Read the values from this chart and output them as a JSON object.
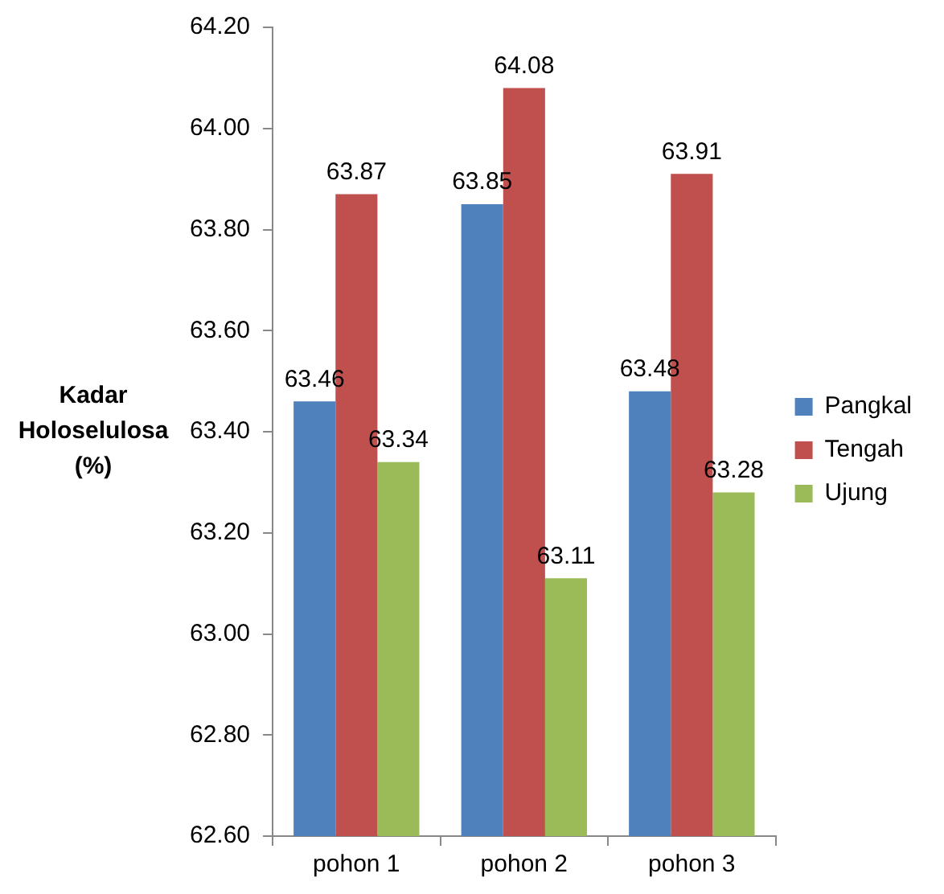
{
  "chart_data": {
    "type": "bar",
    "ylabel": "Kadar Holoselulosa (%)",
    "categories": [
      "pohon 1",
      "pohon 2",
      "pohon 3"
    ],
    "series": [
      {
        "name": "Pangkal",
        "color": "#4f81bd",
        "values": [
          63.46,
          63.85,
          63.48
        ]
      },
      {
        "name": "Tengah",
        "color": "#c0504d",
        "values": [
          63.87,
          64.08,
          63.91
        ]
      },
      {
        "name": "Ujung",
        "color": "#9bbb59",
        "values": [
          63.34,
          63.11,
          63.28
        ]
      }
    ],
    "ylim": [
      62.6,
      64.2
    ],
    "yticks": [
      {
        "value": 62.6,
        "label": "62.60"
      },
      {
        "value": 62.8,
        "label": "62.80"
      },
      {
        "value": 63,
        "label": "63.00"
      },
      {
        "value": 63.2,
        "label": "63.20"
      },
      {
        "value": 63.4,
        "label": "63.40"
      },
      {
        "value": 63.6,
        "label": "63.60"
      },
      {
        "value": 63.8,
        "label": "63.80"
      },
      {
        "value": 64,
        "label": "64.00"
      },
      {
        "value": 64.2,
        "label": "64.20"
      }
    ],
    "grid": false,
    "legend": "right",
    "data_labels": true
  }
}
